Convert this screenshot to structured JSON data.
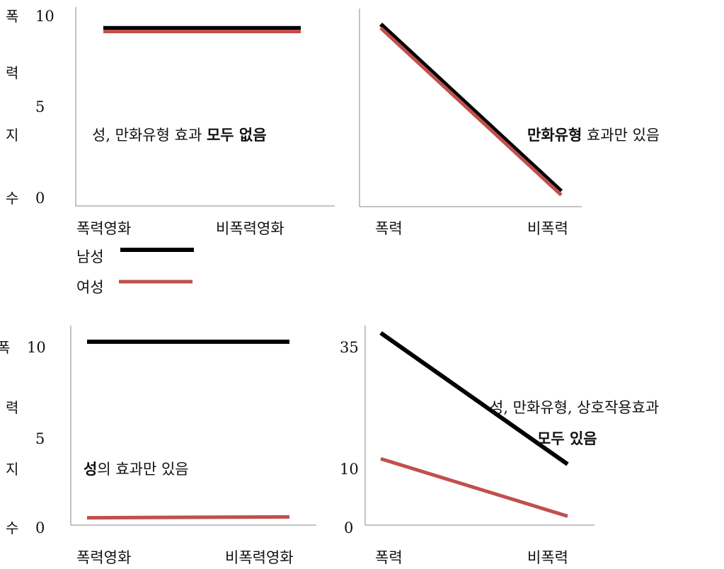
{
  "colors": {
    "male": "#000000",
    "female": "#c0504d",
    "axis": "#888888"
  },
  "legend": [
    {
      "name": "남성",
      "color": "#000000"
    },
    {
      "name": "여성",
      "color": "#c0504d"
    }
  ],
  "chart_data": [
    {
      "type": "line",
      "ylabel_chars": [
        "폭",
        "력",
        "지",
        "수"
      ],
      "yticks": [
        10,
        5,
        0
      ],
      "ylim": [
        0,
        11
      ],
      "categories": [
        "폭력영화",
        "비폭력영화"
      ],
      "series": [
        {
          "name": "남성",
          "values": [
            10,
            10
          ]
        },
        {
          "name": "여성",
          "values": [
            9.8,
            9.8
          ]
        }
      ],
      "annotation": {
        "normal": "성, 만화유형 효과 ",
        "bold": "모두 없음"
      }
    },
    {
      "type": "line",
      "ylim": [
        0,
        11
      ],
      "categories": [
        "폭력",
        "비폭력"
      ],
      "series": [
        {
          "name": "남성",
          "values": [
            9.8,
            1.0
          ]
        },
        {
          "name": "여성",
          "values": [
            9.6,
            0.8
          ]
        }
      ],
      "annotation": {
        "bold": "만화유형",
        "normal": " 효과만 있음"
      }
    },
    {
      "type": "line",
      "ylabel_chars": [
        "폭",
        "력",
        "지",
        "수"
      ],
      "yticks": [
        10,
        5,
        0
      ],
      "ylim": [
        0,
        11.5
      ],
      "categories": [
        "폭력영화",
        "비폭력영화"
      ],
      "series": [
        {
          "name": "남성",
          "values": [
            10,
            10
          ]
        },
        {
          "name": "여성",
          "values": [
            0.4,
            0.45
          ]
        }
      ],
      "annotation": {
        "bold": "성",
        "normal": "의 효과만 있음"
      }
    },
    {
      "type": "line",
      "yticks": [
        35,
        10,
        0
      ],
      "ylim": [
        0,
        37
      ],
      "categories": [
        "폭력",
        "비폭력"
      ],
      "series": [
        {
          "name": "남성",
          "values": [
            35,
            11
          ]
        },
        {
          "name": "여성",
          "values": [
            12,
            1.5
          ]
        }
      ],
      "annotation": {
        "normal": "성, 만화유형, 상호작용효과",
        "bold": "모두 있음"
      }
    }
  ]
}
